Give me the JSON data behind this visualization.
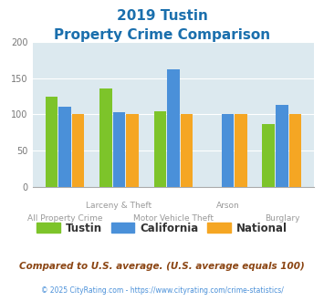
{
  "title_line1": "2019 Tustin",
  "title_line2": "Property Crime Comparison",
  "tustin": [
    125,
    136,
    104,
    0,
    87
  ],
  "california": [
    110,
    103,
    163,
    100,
    113
  ],
  "national": [
    100,
    100,
    100,
    100,
    100
  ],
  "color_tustin": "#7dc42a",
  "color_california": "#4a90d9",
  "color_national": "#f5a623",
  "ylim": [
    0,
    200
  ],
  "yticks": [
    0,
    50,
    100,
    150,
    200
  ],
  "bg_color": "#dce9ef",
  "title_color": "#1a6fad",
  "footer_text": "Compared to U.S. average. (U.S. average equals 100)",
  "copyright_text": "© 2025 CityRating.com - https://www.cityrating.com/crime-statistics/",
  "footer_color": "#8b4513",
  "copyright_color": "#4a90d9",
  "row1_labels": [
    "",
    "Larceny & Theft",
    "",
    "Arson",
    ""
  ],
  "row2_labels": [
    "All Property Crime",
    "",
    "Motor Vehicle Theft",
    "",
    "Burglary"
  ],
  "legend_labels": [
    "Tustin",
    "California",
    "National"
  ]
}
